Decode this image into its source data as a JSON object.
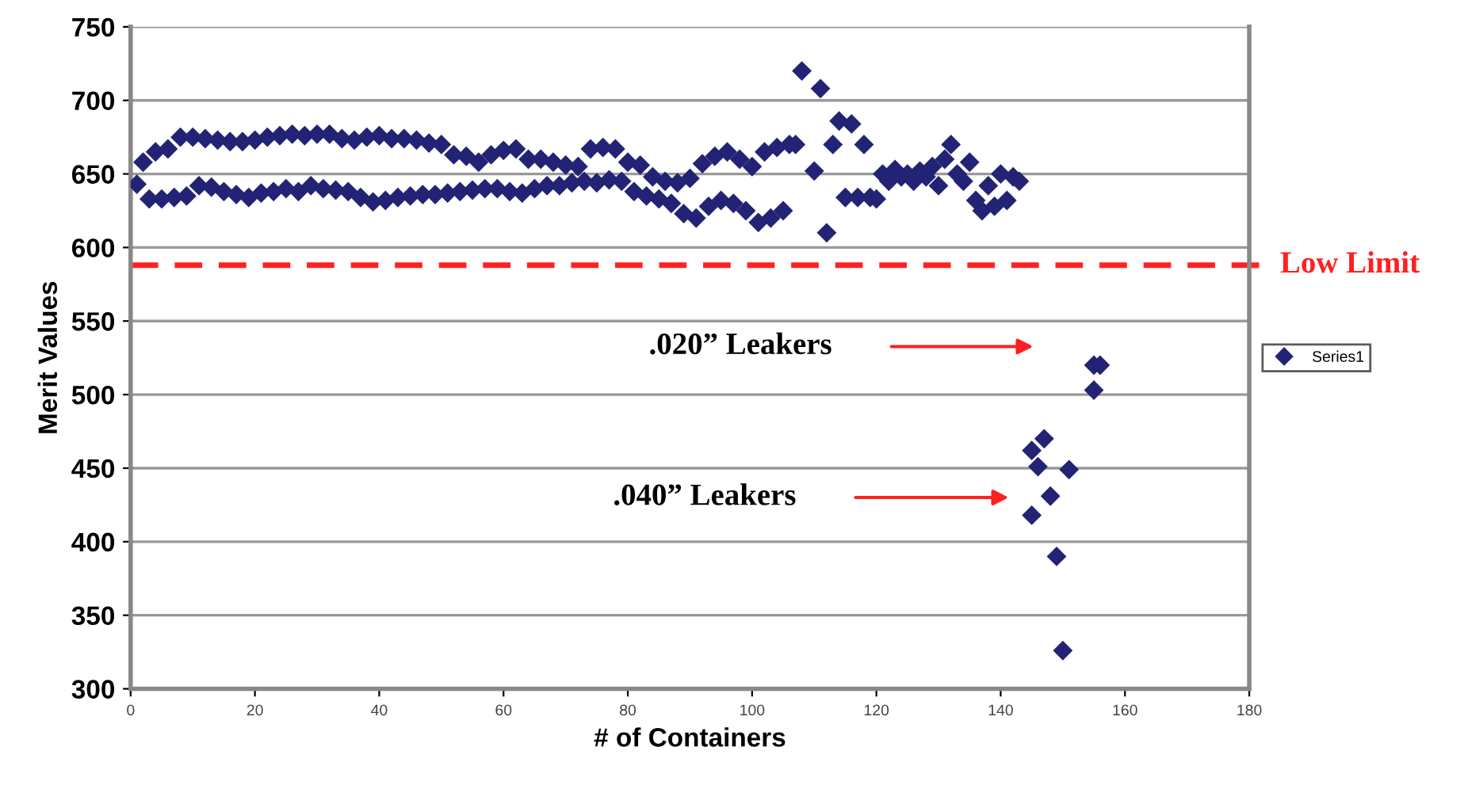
{
  "chart_data": {
    "type": "scatter",
    "xlabel": "# of Containers",
    "ylabel": "Merit Values",
    "xlim": [
      0,
      180
    ],
    "xticks": [
      0,
      20,
      40,
      60,
      80,
      100,
      120,
      140,
      160,
      180
    ],
    "ylim": [
      300,
      750
    ],
    "yticks": [
      300,
      350,
      400,
      450,
      500,
      550,
      600,
      650,
      700,
      750
    ],
    "grid": "y",
    "legend": "right",
    "marker": "diamond",
    "series": [
      {
        "name": "Series1",
        "color": "#232375",
        "x": [
          2,
          4,
          6,
          8,
          10,
          12,
          14,
          16,
          18,
          20,
          22,
          24,
          26,
          28,
          30,
          32,
          34,
          36,
          38,
          40,
          42,
          44,
          46,
          48,
          50,
          52,
          54,
          56,
          58,
          60,
          62,
          64,
          66,
          68,
          70,
          72,
          74,
          76,
          78,
          80,
          82,
          84,
          86,
          88,
          90,
          92,
          94,
          96,
          98,
          100,
          102,
          104,
          106,
          1,
          3,
          5,
          7,
          9,
          11,
          13,
          15,
          17,
          19,
          21,
          23,
          25,
          27,
          29,
          31,
          33,
          35,
          37,
          39,
          41,
          43,
          45,
          47,
          49,
          51,
          53,
          55,
          57,
          59,
          61,
          63,
          65,
          67,
          69,
          71,
          73,
          75,
          77,
          79,
          81,
          83,
          85,
          87,
          89,
          91,
          93,
          95,
          97,
          99,
          101,
          103,
          105,
          107,
          108,
          110,
          111,
          112,
          113,
          114,
          116,
          115,
          117,
          118,
          119,
          120,
          121,
          122,
          123,
          124,
          125,
          126,
          127,
          128,
          129,
          130,
          131,
          132,
          133,
          134,
          135,
          136,
          137,
          138,
          139,
          140,
          141,
          142,
          143,
          145,
          147,
          146,
          148,
          145,
          149,
          150,
          151,
          155,
          156,
          155
        ],
        "values": [
          658,
          665,
          667,
          675,
          675,
          674,
          673,
          672,
          672,
          673,
          675,
          676,
          677,
          676,
          677,
          677,
          674,
          673,
          675,
          676,
          674,
          674,
          673,
          671,
          670,
          663,
          662,
          658,
          663,
          666,
          667,
          660,
          660,
          658,
          656,
          655,
          667,
          668,
          667,
          658,
          656,
          648,
          645,
          644,
          647,
          657,
          662,
          665,
          660,
          655,
          665,
          668,
          670,
          643,
          633,
          633,
          634,
          635,
          642,
          641,
          638,
          636,
          634,
          637,
          638,
          640,
          638,
          642,
          640,
          639,
          638,
          634,
          631,
          632,
          634,
          635,
          636,
          636,
          637,
          638,
          639,
          640,
          640,
          638,
          637,
          640,
          642,
          642,
          644,
          645,
          644,
          646,
          645,
          638,
          635,
          633,
          630,
          623,
          620,
          628,
          632,
          630,
          625,
          617,
          620,
          625,
          670,
          720,
          652,
          708,
          610,
          670,
          686,
          684,
          634,
          634,
          670,
          634,
          633,
          650,
          645,
          653,
          648,
          650,
          645,
          652,
          648,
          655,
          642,
          660,
          670,
          650,
          645,
          658,
          632,
          625,
          642,
          628,
          650,
          632,
          648,
          645,
          462,
          470,
          451,
          431,
          418,
          390,
          326,
          449,
          520,
          520,
          503
        ]
      }
    ],
    "ref_lines": [
      {
        "axis": "y",
        "value": 588,
        "label": "Low Limit",
        "color": "#ff2020",
        "line_style": "dashed"
      }
    ],
    "annotations": [
      ".020” Leakers",
      ".040” Leakers"
    ]
  }
}
